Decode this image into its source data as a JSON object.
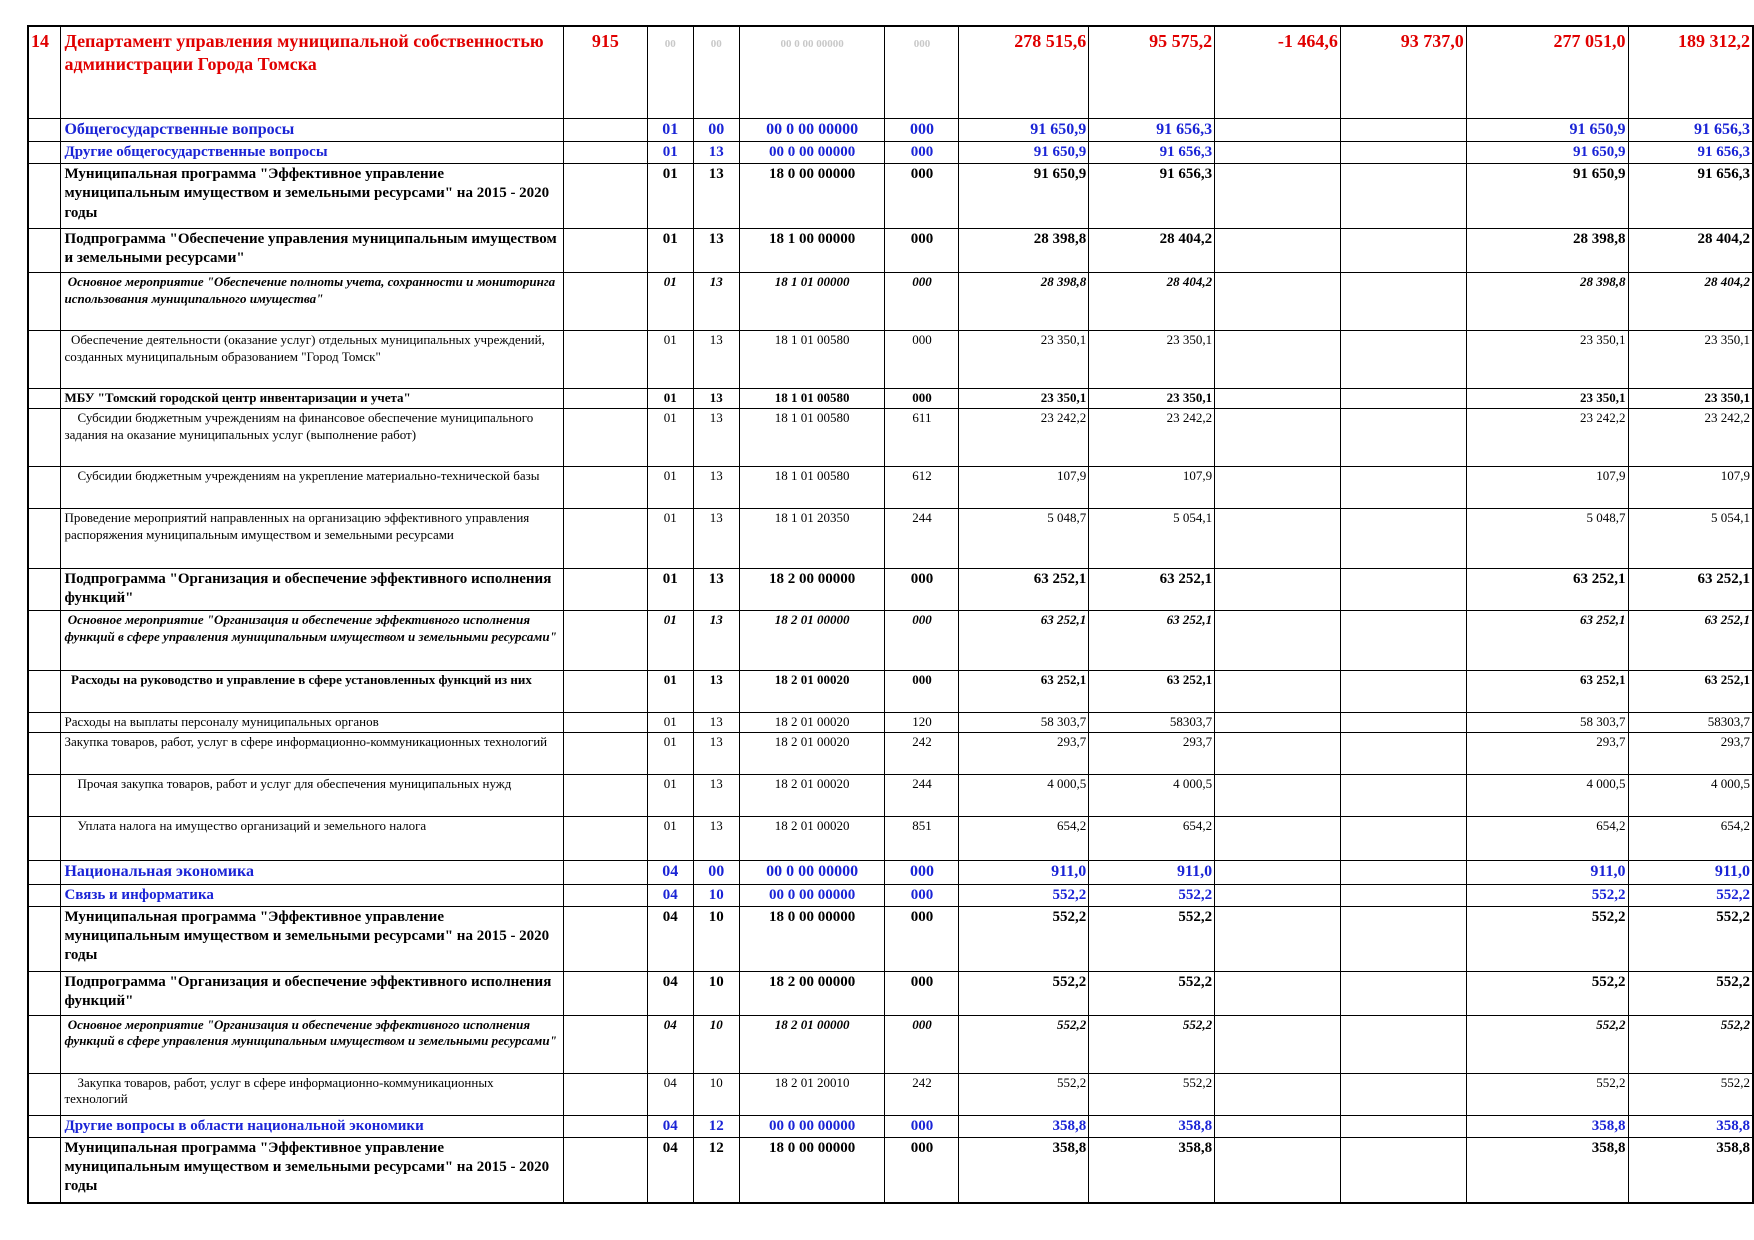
{
  "ghost_codes": {
    "rz": "00",
    "pr": "00",
    "csr": "00 0 00 00000",
    "vr": "000"
  },
  "rows": [
    {
      "style": "dept",
      "num": "14",
      "name": "Департамент управления муниципальной собственностью администрации Города Томска",
      "ved": "915",
      "rz": "",
      "pr": "",
      "csr": "",
      "vr": "",
      "a1": "278 515,6",
      "a2": "95 575,2",
      "a3": "-1 464,6",
      "a4": "93 737,0",
      "a5": "277 051,0",
      "a6": "189 312,2"
    },
    {
      "style": "sec",
      "num": "",
      "name": "Общегосударственные вопросы",
      "ved": "",
      "rz": "01",
      "pr": "00",
      "csr": "00 0 00 00000",
      "vr": "000",
      "a1": "91 650,9",
      "a2": "91 656,3",
      "a3": "",
      "a4": "",
      "a5": "91 650,9",
      "a6": "91 656,3"
    },
    {
      "style": "sub",
      "num": "",
      "name": "Другие общегосударственные вопросы",
      "ved": "",
      "rz": "01",
      "pr": "13",
      "csr": "00 0 00 00000",
      "vr": "000",
      "a1": "91 650,9",
      "a2": "91 656,3",
      "a3": "",
      "a4": "",
      "a5": "91 650,9",
      "a6": "91 656,3"
    },
    {
      "style": "prog",
      "num": "",
      "name": "Муниципальная программа \"Эффективное управление муниципальным имуществом и земельными ресурсами\" на 2015 - 2020 годы",
      "ved": "",
      "rz": "01",
      "pr": "13",
      "csr": "18 0 00 00000",
      "vr": "000",
      "a1": "91 650,9",
      "a2": "91 656,3",
      "a3": "",
      "a4": "",
      "a5": "91 650,9",
      "a6": "91 656,3"
    },
    {
      "style": "prog",
      "num": "",
      "name": "Подпрограмма \"Обеспечение управления муниципальным имуществом и земельными ресурсами\"",
      "ved": "",
      "rz": "01",
      "pr": "13",
      "csr": "18 1 00 00000",
      "vr": "000",
      "a1": "28 398,8",
      "a2": "28 404,2",
      "a3": "",
      "a4": "",
      "a5": "28 398,8",
      "a6": "28 404,2"
    },
    {
      "style": "main",
      "num": "",
      "name": " Основное мероприятие \"Обеспечение полноты учета, сохранности и мониторинга использования муниципального имущества\"",
      "ved": "",
      "rz": "01",
      "pr": "13",
      "csr": "18 1 01 00000",
      "vr": "000",
      "a1": "28 398,8",
      "a2": "28 404,2",
      "a3": "",
      "a4": "",
      "a5": "28 398,8",
      "a6": "28 404,2"
    },
    {
      "style": "item",
      "num": "",
      "name": "  Обеспечение деятельности (оказание услуг) отдельных муниципальных учреждений, созданных муниципальным образованием \"Город Томск\"",
      "ved": "",
      "rz": "01",
      "pr": "13",
      "csr": "18 1 01 00580",
      "vr": "000",
      "a1": "23 350,1",
      "a2": "23 350,1",
      "a3": "",
      "a4": "",
      "a5": "23 350,1",
      "a6": "23 350,1"
    },
    {
      "style": "itemb",
      "num": "",
      "name": "МБУ \"Томский городской центр инвентаризации и учета\"",
      "ved": "",
      "rz": "01",
      "pr": "13",
      "csr": "18 1 01 00580",
      "vr": "000",
      "a1": "23 350,1",
      "a2": "23 350,1",
      "a3": "",
      "a4": "",
      "a5": "23 350,1",
      "a6": "23 350,1",
      "plainCodes": true
    },
    {
      "style": "item",
      "num": "",
      "name": "    Субсидии бюджетным учреждениям на финансовое обеспечение муниципального задания на оказание муниципальных услуг (выполнение работ)",
      "ved": "",
      "rz": "01",
      "pr": "13",
      "csr": "18 1 01 00580",
      "vr": "611",
      "a1": "23 242,2",
      "a2": "23 242,2",
      "a3": "",
      "a4": "",
      "a5": "23 242,2",
      "a6": "23 242,2"
    },
    {
      "style": "item",
      "num": "",
      "name": "    Субсидии бюджетным учреждениям на укрепление материально-технической базы",
      "ved": "",
      "rz": "01",
      "pr": "13",
      "csr": "18 1 01 00580",
      "vr": "612",
      "a1": "107,9",
      "a2": "107,9",
      "a3": "",
      "a4": "",
      "a5": "107,9",
      "a6": "107,9"
    },
    {
      "style": "item",
      "num": "",
      "name": "Проведение мероприятий направленных на организацию эффективного управления распоряжения муниципальным имуществом и земельными ресурсами",
      "ved": "",
      "rz": "01",
      "pr": "13",
      "csr": "18 1 01 20350",
      "vr": "244",
      "a1": "5 048,7",
      "a2": "5 054,1",
      "a3": "",
      "a4": "",
      "a5": "5 048,7",
      "a6": "5 054,1"
    },
    {
      "style": "prog",
      "num": "",
      "name": "Подпрограмма \"Организация и обеспечение эффективного исполнения функций\"",
      "ved": "",
      "rz": "01",
      "pr": "13",
      "csr": "18 2 00 00000",
      "vr": "000",
      "a1": "63 252,1",
      "a2": "63 252,1",
      "a3": "",
      "a4": "",
      "a5": "63 252,1",
      "a6": "63 252,1"
    },
    {
      "style": "main",
      "num": "",
      "name": " Основное мероприятие \"Организация и обеспечение эффективного исполнения функций в сфере управления муниципальным имуществом и земельными ресурсами\"",
      "ved": "",
      "rz": "01",
      "pr": "13",
      "csr": "18 2 01 00000",
      "vr": "000",
      "a1": "63 252,1",
      "a2": "63 252,1",
      "a3": "",
      "a4": "",
      "a5": "63 252,1",
      "a6": "63 252,1"
    },
    {
      "style": "itemb",
      "num": "",
      "name": "  Расходы на руководство и управление в сфере установленных функций из них",
      "ved": "",
      "rz": "01",
      "pr": "13",
      "csr": "18 2 01 00020",
      "vr": "000",
      "a1": "63 252,1",
      "a2": "63 252,1",
      "a3": "",
      "a4": "",
      "a5": "63 252,1",
      "a6": "63 252,1"
    },
    {
      "style": "item",
      "num": "",
      "name": "Расходы на выплаты персоналу муниципальных органов",
      "ved": "",
      "rz": "01",
      "pr": "13",
      "csr": "18 2 01 00020",
      "vr": "120",
      "a1": "58 303,7",
      "a2": "58303,7",
      "a3": "",
      "a4": "",
      "a5": "58 303,7",
      "a6": "58303,7"
    },
    {
      "style": "item",
      "num": "",
      "name": "Закупка товаров, работ, услуг в сфере информационно-коммуникационных технологий",
      "ved": "",
      "rz": "01",
      "pr": "13",
      "csr": "18 2 01 00020",
      "vr": "242",
      "a1": "293,7",
      "a2": "293,7",
      "a3": "",
      "a4": "",
      "a5": "293,7",
      "a6": "293,7"
    },
    {
      "style": "item",
      "num": "",
      "name": "    Прочая закупка товаров, работ и услуг для обеспечения муниципальных нужд",
      "ved": "",
      "rz": "01",
      "pr": "13",
      "csr": "18 2 01 00020",
      "vr": "244",
      "a1": "4 000,5",
      "a2": "4 000,5",
      "a3": "",
      "a4": "",
      "a5": "4 000,5",
      "a6": "4 000,5"
    },
    {
      "style": "item",
      "num": "",
      "name": "    Уплата налога на имущество организаций и земельного налога",
      "ved": "",
      "rz": "01",
      "pr": "13",
      "csr": "18 2 01 00020",
      "vr": "851",
      "a1": "654,2",
      "a2": "654,2",
      "a3": "",
      "a4": "",
      "a5": "654,2",
      "a6": "654,2"
    },
    {
      "style": "sec",
      "num": "",
      "name": "Национальная экономика",
      "ved": "",
      "rz": "04",
      "pr": "00",
      "csr": "00 0 00 00000",
      "vr": "000",
      "a1": "911,0",
      "a2": "911,0",
      "a3": "",
      "a4": "",
      "a5": "911,0",
      "a6": "911,0"
    },
    {
      "style": "sub",
      "num": "",
      "name": "Связь и информатика",
      "ved": "",
      "rz": "04",
      "pr": "10",
      "csr": "00 0 00 00000",
      "vr": "000",
      "a1": "552,2",
      "a2": "552,2",
      "a3": "",
      "a4": "",
      "a5": "552,2",
      "a6": "552,2"
    },
    {
      "style": "prog",
      "num": "",
      "name": "Муниципальная программа \"Эффективное управление муниципальным имуществом и земельными ресурсами\" на 2015 - 2020 годы",
      "ved": "",
      "rz": "04",
      "pr": "10",
      "csr": "18 0 00 00000",
      "vr": "000",
      "a1": "552,2",
      "a2": "552,2",
      "a3": "",
      "a4": "",
      "a5": "552,2",
      "a6": "552,2"
    },
    {
      "style": "prog",
      "num": "",
      "name": "Подпрограмма \"Организация и обеспечение эффективного исполнения функций\"",
      "ved": "",
      "rz": "04",
      "pr": "10",
      "csr": "18 2 00 00000",
      "vr": "000",
      "a1": "552,2",
      "a2": "552,2",
      "a3": "",
      "a4": "",
      "a5": "552,2",
      "a6": "552,2"
    },
    {
      "style": "main",
      "num": "",
      "name": " Основное мероприятие \"Организация и обеспечение эффективного исполнения функций в сфере управления муниципальным имуществом и земельными ресурсами\"",
      "ved": "",
      "rz": "04",
      "pr": "10",
      "csr": "18 2 01 00000",
      "vr": "000",
      "a1": "552,2",
      "a2": "552,2",
      "a3": "",
      "a4": "",
      "a5": "552,2",
      "a6": "552,2"
    },
    {
      "style": "item",
      "num": "",
      "name": "    Закупка товаров, работ, услуг в сфере информационно-коммуникационных технологий",
      "ved": "",
      "rz": "04",
      "pr": "10",
      "csr": "18 2 01 20010",
      "vr": "242",
      "a1": "552,2",
      "a2": "552,2",
      "a3": "",
      "a4": "",
      "a5": "552,2",
      "a6": "552,2"
    },
    {
      "style": "sub",
      "num": "",
      "name": "Другие вопросы в области национальной экономики",
      "ved": "",
      "rz": "04",
      "pr": "12",
      "csr": "00 0 00 00000",
      "vr": "000",
      "a1": "358,8",
      "a2": "358,8",
      "a3": "",
      "a4": "",
      "a5": "358,8",
      "a6": "358,8"
    },
    {
      "style": "prog",
      "num": "",
      "name": "Муниципальная программа \"Эффективное управление муниципальным имуществом и земельными ресурсами\" на 2015 - 2020 годы",
      "ved": "",
      "rz": "04",
      "pr": "12",
      "csr": "18 0 00 00000",
      "vr": "000",
      "a1": "358,8",
      "a2": "358,8",
      "a3": "",
      "a4": "",
      "a5": "358,8",
      "a6": "358,8"
    }
  ]
}
